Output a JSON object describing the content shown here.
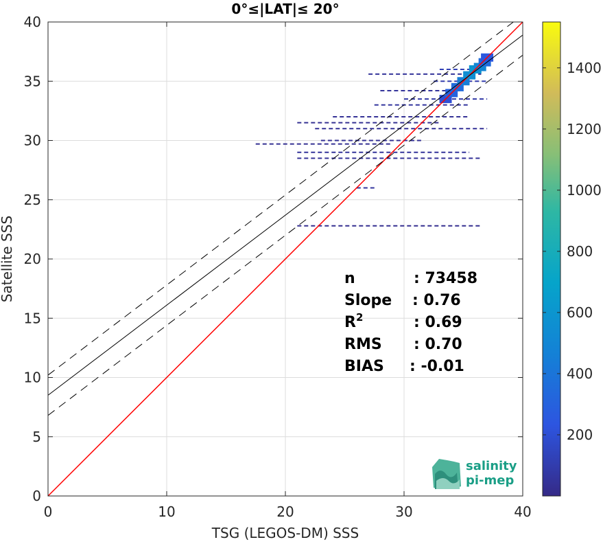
{
  "chart_data": {
    "type": "scatter",
    "title": "0°≤|LAT|≤ 20°",
    "xlabel": "TSG (LEGOS-DM) SSS",
    "ylabel": "Satellite SSS",
    "xlim": [
      0,
      40
    ],
    "ylim": [
      0,
      40
    ],
    "xticks": [
      "0",
      "10",
      "20",
      "30",
      "40"
    ],
    "yticks": [
      "0",
      "5",
      "10",
      "15",
      "20",
      "25",
      "30",
      "35",
      "40"
    ],
    "grid": true,
    "colormap": "parula",
    "colorbar": {
      "range": [
        0,
        1550
      ],
      "ticks": [
        "200",
        "400",
        "600",
        "800",
        "1000",
        "1200",
        "1400"
      ]
    },
    "lines": [
      {
        "name": "identity",
        "slope": 1.0,
        "intercept": 0.0,
        "color": "#ff0000",
        "style": "solid"
      },
      {
        "name": "fit",
        "slope": 0.76,
        "intercept": 8.5,
        "color": "#000000",
        "style": "solid"
      },
      {
        "name": "fit-upper",
        "slope": 0.76,
        "intercept": 10.2,
        "color": "#000000",
        "style": "dashed"
      },
      {
        "name": "fit-lower",
        "slope": 0.76,
        "intercept": 6.8,
        "color": "#000000",
        "style": "dashed"
      }
    ],
    "density_segments": [
      {
        "x0": 21.0,
        "x1": 36.5,
        "y": 22.8,
        "count": 20
      },
      {
        "x0": 26.0,
        "x1": 27.5,
        "y": 26.0,
        "count": 60
      },
      {
        "x0": 21.0,
        "x1": 36.5,
        "y": 28.5,
        "count": 40
      },
      {
        "x0": 17.5,
        "x1": 29.0,
        "y": 29.7,
        "count": 30
      },
      {
        "x0": 21.0,
        "x1": 35.5,
        "y": 29.0,
        "count": 50
      },
      {
        "x0": 23.0,
        "x1": 31.5,
        "y": 30.0,
        "count": 40
      },
      {
        "x0": 22.5,
        "x1": 37.0,
        "y": 31.0,
        "count": 40
      },
      {
        "x0": 21.0,
        "x1": 33.0,
        "y": 31.5,
        "count": 30
      },
      {
        "x0": 24.0,
        "x1": 35.5,
        "y": 32.0,
        "count": 40
      },
      {
        "x0": 27.5,
        "x1": 35.5,
        "y": 33.0,
        "count": 60
      },
      {
        "x0": 30.0,
        "x1": 37.0,
        "y": 33.5,
        "count": 80
      },
      {
        "x0": 28.0,
        "x1": 35.0,
        "y": 34.2,
        "count": 50
      },
      {
        "x0": 32.5,
        "x1": 37.0,
        "y": 35.0,
        "count": 100
      },
      {
        "x0": 27.0,
        "x1": 36.5,
        "y": 35.6,
        "count": 50
      },
      {
        "x0": 33.0,
        "x1": 37.0,
        "y": 36.0,
        "count": 120
      }
    ],
    "density_core": [
      {
        "x": 33.5,
        "y": 33.5,
        "count": 200
      },
      {
        "x": 34.0,
        "y": 34.0,
        "count": 300
      },
      {
        "x": 34.5,
        "y": 34.5,
        "count": 350
      },
      {
        "x": 35.0,
        "y": 35.0,
        "count": 450
      },
      {
        "x": 35.5,
        "y": 35.5,
        "count": 550
      },
      {
        "x": 36.0,
        "y": 36.0,
        "count": 600
      },
      {
        "x": 36.4,
        "y": 36.2,
        "count": 500
      },
      {
        "x": 36.8,
        "y": 36.6,
        "count": 350
      },
      {
        "x": 37.0,
        "y": 37.0,
        "count": 250
      }
    ],
    "stats": [
      {
        "label": "n",
        "value": ": 73458"
      },
      {
        "label": "Slope",
        "value": ": 0.76"
      },
      {
        "label": "R",
        "sup": "2",
        "value": ": 0.69"
      },
      {
        "label": "RMS",
        "value": ": 0.70"
      },
      {
        "label": "BIAS",
        "value": ": -0.01"
      }
    ]
  },
  "logo": {
    "line1": "salinity",
    "line2": "pi-mep"
  }
}
